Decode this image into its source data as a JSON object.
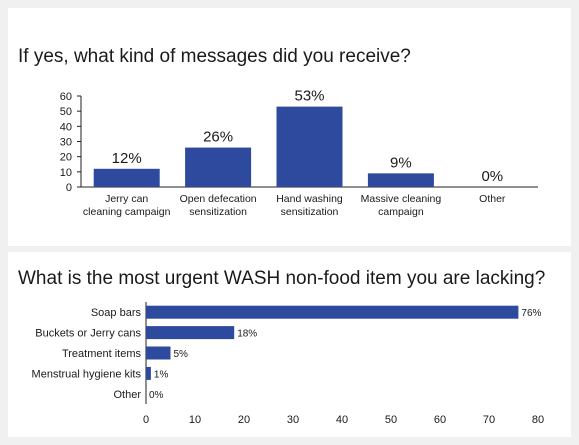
{
  "colors": {
    "bar": "#2e4a9e",
    "axis": "#222222",
    "background": "#f0f0f0",
    "panel": "#ffffff"
  },
  "chart_data": [
    {
      "type": "bar",
      "title": "If yes, what kind of messages did you receive?",
      "categories": [
        [
          "Jerry can",
          "cleaning campaign"
        ],
        [
          "Open defecation",
          "sensitization"
        ],
        [
          "Hand washing",
          "sensitization"
        ],
        [
          "Massive cleaning",
          "campaign"
        ],
        [
          "Other"
        ]
      ],
      "values": [
        12,
        26,
        53,
        9,
        0
      ],
      "data_labels": [
        "12%",
        "26%",
        "53%",
        "9%",
        "0%"
      ],
      "ylim": [
        0,
        60
      ],
      "yticks": [
        0,
        10,
        20,
        30,
        40,
        50,
        60
      ],
      "grid": false
    },
    {
      "type": "bar",
      "orientation": "horizontal",
      "title": "What is the most urgent WASH non-food item you are lacking?",
      "categories": [
        "Soap bars",
        "Buckets or Jerry cans",
        "Treatment items",
        "Menstrual hygiene kits",
        "Other"
      ],
      "values": [
        76,
        18,
        5,
        1,
        0
      ],
      "data_labels": [
        "76%",
        "18%",
        "5%",
        "1%",
        "0%"
      ],
      "xlim": [
        0,
        80
      ],
      "xticks": [
        0,
        10,
        20,
        30,
        40,
        50,
        60,
        70,
        80
      ],
      "grid": false
    }
  ]
}
